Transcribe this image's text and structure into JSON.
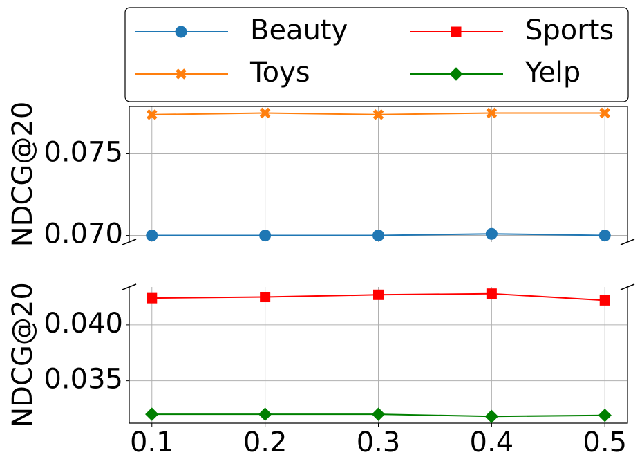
{
  "chart_data": [
    {
      "type": "line",
      "ylabel": "NDCG@20",
      "x": [
        0.1,
        0.2,
        0.3,
        0.4,
        0.5
      ],
      "series": [
        {
          "name": "Beauty",
          "color": "#1f77b4",
          "marker": "circle",
          "values": [
            0.07,
            0.07,
            0.07,
            0.0701,
            0.07
          ]
        },
        {
          "name": "Toys",
          "color": "#ff7f0e",
          "marker": "x",
          "values": [
            0.0774,
            0.0775,
            0.0774,
            0.0775,
            0.0775
          ]
        }
      ],
      "xlim": [
        0.08,
        0.52
      ],
      "ylim": [
        0.0696,
        0.0779
      ],
      "yticks": [
        {
          "value": 0.07,
          "label": "0.070"
        },
        0.075
      ],
      "grid": true
    },
    {
      "type": "line",
      "ylabel": "NDCG@20",
      "x": [
        0.1,
        0.2,
        0.3,
        0.4,
        0.5
      ],
      "series": [
        {
          "name": "Sports",
          "color": "#ff0000",
          "marker": "square",
          "values": [
            0.0424,
            0.0425,
            0.0427,
            0.0428,
            0.0422
          ]
        },
        {
          "name": "Yelp",
          "color": "#008000",
          "marker": "diamond",
          "values": [
            0.032,
            0.032,
            0.032,
            0.0318,
            0.0319
          ]
        }
      ],
      "xlim": [
        0.08,
        0.52
      ],
      "ylim": [
        0.0312,
        0.0434
      ],
      "xticks": [
        0.1,
        0.2,
        0.3,
        0.4,
        0.5
      ],
      "yticks": [
        0.035,
        {
          "value": 0.04,
          "label": "0.040"
        }
      ],
      "grid": true
    }
  ]
}
